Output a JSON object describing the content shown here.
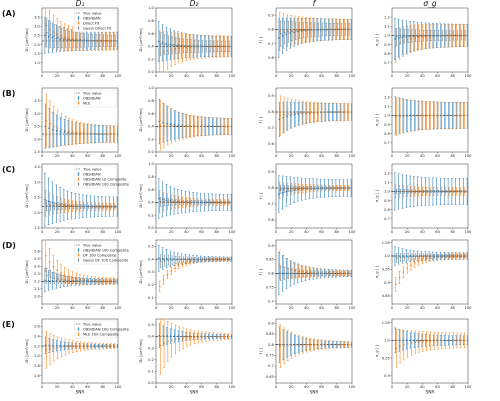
{
  "figure": {
    "column_titles": [
      "D₁",
      "D₂",
      "f",
      "σ_g"
    ],
    "row_labels": [
      "(A)",
      "(B)",
      "(C)",
      "(D)",
      "(E)"
    ],
    "xlabel": "SNR"
  },
  "chart_data": [
    {
      "id": "A-D1",
      "row": 0,
      "col": 0,
      "type": "scatter",
      "ylabel": "D₁ [µm²/ms]",
      "ylim": [
        0.5,
        4.0
      ],
      "yticks": [
        1.0,
        1.5,
        2.0,
        2.5,
        3.0,
        3.5
      ],
      "xlim": [
        0,
        100
      ],
      "xticks": [
        0,
        20,
        40,
        60,
        80,
        100
      ],
      "truth": 2.2,
      "legend": [
        "True value",
        "OBSIDIAN",
        "Direct Fit",
        "Gauss Direct Fit"
      ],
      "series": [
        {
          "name": "OBSIDIAN",
          "color": "#1f77b4",
          "start": 2.6,
          "err0": 1.1,
          "errInf": 0.45
        },
        {
          "name": "Direct Fit",
          "color": "#ff7f0e",
          "start": 3.3,
          "err0": 1.3,
          "errInf": 0.5
        },
        {
          "name": "Gauss Direct Fit",
          "color": "#7f7f7f",
          "start": 2.8,
          "err0": 0.9,
          "errInf": 0.3
        }
      ]
    },
    {
      "id": "A-D2",
      "row": 0,
      "col": 1,
      "type": "scatter",
      "ylabel": "D₂ [µm²/ms]",
      "ylim": [
        0.0,
        1.0
      ],
      "yticks": [
        0.0,
        0.2,
        0.4,
        0.6,
        0.8,
        1.0
      ],
      "xlim": [
        0,
        100
      ],
      "xticks": [
        0,
        20,
        40,
        60,
        80,
        100
      ],
      "truth": 0.4,
      "series": [
        {
          "name": "OBSIDIAN",
          "color": "#1f77b4",
          "start": 0.5,
          "err0": 0.35,
          "errInf": 0.15
        },
        {
          "name": "Direct Fit",
          "color": "#ff7f0e",
          "start": 0.25,
          "err0": 0.4,
          "errInf": 0.16
        },
        {
          "name": "Gauss Direct Fit",
          "color": "#7f7f7f",
          "start": 0.45,
          "err0": 0.2,
          "errInf": 0.08
        }
      ]
    },
    {
      "id": "A-f",
      "row": 0,
      "col": 2,
      "type": "scatter",
      "ylabel": "f [ ]",
      "ylim": [
        0.5,
        0.95
      ],
      "yticks": [
        0.6,
        0.7,
        0.8,
        0.9
      ],
      "xlim": [
        0,
        100
      ],
      "xticks": [
        0,
        20,
        40,
        60,
        80,
        100
      ],
      "truth": 0.8,
      "series": [
        {
          "name": "OBSIDIAN",
          "color": "#1f77b4",
          "start": 0.72,
          "err0": 0.15,
          "errInf": 0.07
        },
        {
          "name": "Direct Fit",
          "color": "#ff7f0e",
          "start": 0.78,
          "err0": 0.15,
          "errInf": 0.07
        },
        {
          "name": "Gauss Direct Fit",
          "color": "#7f7f7f",
          "start": 0.76,
          "err0": 0.1,
          "errInf": 0.04
        }
      ]
    },
    {
      "id": "A-sg",
      "row": 0,
      "col": 3,
      "type": "scatter",
      "ylabel": "σ_g [ ]",
      "ylim": [
        0.6,
        1.3
      ],
      "yticks": [
        0.7,
        0.8,
        0.9,
        1.0,
        1.1,
        1.2
      ],
      "xlim": [
        0,
        100
      ],
      "xticks": [
        0,
        20,
        40,
        60,
        80,
        100
      ],
      "truth": 1.0,
      "series": [
        {
          "name": "OBSIDIAN",
          "color": "#1f77b4",
          "start": 0.95,
          "err0": 0.25,
          "errInf": 0.12
        },
        {
          "name": "Direct Fit",
          "color": "#ff7f0e",
          "start": 0.85,
          "err0": 0.2,
          "errInf": 0.12
        },
        {
          "name": "Gauss Direct Fit",
          "color": "#7f7f7f",
          "start": 0.98,
          "err0": 0.1,
          "errInf": 0.05
        }
      ]
    },
    {
      "id": "B-D1",
      "row": 1,
      "col": 0,
      "type": "scatter",
      "ylabel": "D₁ [µm²/ms]",
      "ylim": [
        1.5,
        4.0
      ],
      "yticks": [
        1.5,
        2.0,
        2.5,
        3.0,
        3.5
      ],
      "xlim": [
        0,
        100
      ],
      "xticks": [
        0,
        20,
        40,
        60,
        80,
        100
      ],
      "truth": 2.2,
      "legend": [
        "True value",
        "OBSIDIAN",
        "MLE"
      ],
      "series": [
        {
          "name": "OBSIDIAN",
          "color": "#1f77b4",
          "start": 2.6,
          "err0": 1.0,
          "errInf": 0.3
        },
        {
          "name": "MLE",
          "color": "#ff7f0e",
          "start": 2.9,
          "err0": 1.2,
          "errInf": 0.3
        }
      ]
    },
    {
      "id": "B-D2",
      "row": 1,
      "col": 1,
      "type": "scatter",
      "ylabel": "D₂ [µm²/ms]",
      "ylim": [
        0.0,
        1.0
      ],
      "yticks": [
        0.0,
        0.2,
        0.4,
        0.6,
        0.8,
        1.0
      ],
      "xlim": [
        0,
        100
      ],
      "xticks": [
        0,
        20,
        40,
        60,
        80,
        100
      ],
      "truth": 0.4,
      "series": [
        {
          "name": "OBSIDIAN",
          "color": "#1f77b4",
          "start": 0.5,
          "err0": 0.4,
          "errInf": 0.12
        },
        {
          "name": "MLE",
          "color": "#ff7f0e",
          "start": 0.42,
          "err0": 0.45,
          "errInf": 0.12
        }
      ]
    },
    {
      "id": "B-f",
      "row": 1,
      "col": 2,
      "type": "scatter",
      "ylabel": "f [ ]",
      "ylim": [
        0.55,
        0.95
      ],
      "yticks": [
        0.6,
        0.7,
        0.8,
        0.9
      ],
      "xlim": [
        0,
        100
      ],
      "xticks": [
        0,
        20,
        40,
        60,
        80,
        100
      ],
      "truth": 0.8,
      "series": [
        {
          "name": "OBSIDIAN",
          "color": "#1f77b4",
          "start": 0.74,
          "err0": 0.12,
          "errInf": 0.05
        },
        {
          "name": "MLE",
          "color": "#ff7f0e",
          "start": 0.77,
          "err0": 0.14,
          "errInf": 0.05
        }
      ]
    },
    {
      "id": "B-sg",
      "row": 1,
      "col": 3,
      "type": "scatter",
      "ylabel": "σ_g [ ]",
      "ylim": [
        0.6,
        1.3
      ],
      "yticks": [
        0.7,
        0.8,
        0.9,
        1.0,
        1.1,
        1.2
      ],
      "xlim": [
        0,
        100
      ],
      "xticks": [
        0,
        20,
        40,
        60,
        80,
        100
      ],
      "truth": 1.0,
      "series": [
        {
          "name": "OBSIDIAN",
          "color": "#1f77b4",
          "start": 1.0,
          "err0": 0.22,
          "errInf": 0.14
        },
        {
          "name": "MLE",
          "color": "#ff7f0e",
          "start": 0.98,
          "err0": 0.22,
          "errInf": 0.14
        }
      ]
    },
    {
      "id": "C-D1",
      "row": 2,
      "col": 0,
      "type": "scatter",
      "ylabel": "D₁ [µm²/ms]",
      "ylim": [
        1.5,
        3.6
      ],
      "yticks": [
        1.5,
        2.0,
        2.5,
        3.0,
        3.5
      ],
      "xlim": [
        0,
        100
      ],
      "xticks": [
        0,
        20,
        40,
        60,
        80,
        100
      ],
      "truth": 2.2,
      "legend": [
        "True value",
        "OBSIDIAN",
        "OBSIDIAN 10 Composite",
        "OBSIDIAN 100 Composite"
      ],
      "series": [
        {
          "name": "OBSIDIAN",
          "color": "#1f77b4",
          "start": 2.5,
          "err0": 1.0,
          "errInf": 0.3
        },
        {
          "name": "OBSIDIAN 10 Composite",
          "color": "#ff7f0e",
          "start": 2.35,
          "err0": 0.5,
          "errInf": 0.1
        },
        {
          "name": "OBSIDIAN 100 Composite",
          "color": "#7f7f7f",
          "start": 2.25,
          "err0": 0.2,
          "errInf": 0.04
        }
      ]
    },
    {
      "id": "C-D2",
      "row": 2,
      "col": 1,
      "type": "scatter",
      "ylabel": "D₂ [µm²/ms]",
      "ylim": [
        0.0,
        1.0
      ],
      "yticks": [
        0.0,
        0.2,
        0.4,
        0.6,
        0.8,
        1.0
      ],
      "xlim": [
        0,
        100
      ],
      "xticks": [
        0,
        20,
        40,
        60,
        80,
        100
      ],
      "truth": 0.4,
      "series": [
        {
          "name": "OBSIDIAN",
          "color": "#1f77b4",
          "start": 0.48,
          "err0": 0.35,
          "errInf": 0.12
        },
        {
          "name": "OBSIDIAN 10 Composite",
          "color": "#ff7f0e",
          "start": 0.42,
          "err0": 0.2,
          "errInf": 0.04
        },
        {
          "name": "OBSIDIAN 100 Composite",
          "color": "#7f7f7f",
          "start": 0.41,
          "err0": 0.08,
          "errInf": 0.02
        }
      ]
    },
    {
      "id": "C-f",
      "row": 2,
      "col": 2,
      "type": "scatter",
      "ylabel": "f [ ]",
      "ylim": [
        0.55,
        0.95
      ],
      "yticks": [
        0.6,
        0.7,
        0.8,
        0.9
      ],
      "xlim": [
        0,
        100
      ],
      "xticks": [
        0,
        20,
        40,
        60,
        80,
        100
      ],
      "truth": 0.8,
      "series": [
        {
          "name": "OBSIDIAN",
          "color": "#1f77b4",
          "start": 0.75,
          "err0": 0.13,
          "errInf": 0.05
        },
        {
          "name": "OBSIDIAN 10 Composite",
          "color": "#ff7f0e",
          "start": 0.78,
          "err0": 0.06,
          "errInf": 0.015
        },
        {
          "name": "OBSIDIAN 100 Composite",
          "color": "#7f7f7f",
          "start": 0.79,
          "err0": 0.03,
          "errInf": 0.006
        }
      ]
    },
    {
      "id": "C-sg",
      "row": 2,
      "col": 3,
      "type": "scatter",
      "ylabel": "σ_g [ ]",
      "ylim": [
        0.6,
        1.3
      ],
      "yticks": [
        0.7,
        0.8,
        0.9,
        1.0,
        1.1,
        1.2
      ],
      "xlim": [
        0,
        100
      ],
      "xticks": [
        0,
        20,
        40,
        60,
        80,
        100
      ],
      "truth": 1.0,
      "series": [
        {
          "name": "OBSIDIAN",
          "color": "#1f77b4",
          "start": 1.0,
          "err0": 0.22,
          "errInf": 0.14
        },
        {
          "name": "OBSIDIAN 10 Composite",
          "color": "#ff7f0e",
          "start": 1.0,
          "err0": 0.08,
          "errInf": 0.04
        },
        {
          "name": "OBSIDIAN 100 Composite",
          "color": "#7f7f7f",
          "start": 1.0,
          "err0": 0.03,
          "errInf": 0.01
        }
      ]
    },
    {
      "id": "D-D1",
      "row": 3,
      "col": 0,
      "type": "scatter",
      "ylabel": "D₁ [µm²/ms]",
      "ylim": [
        1.9,
        2.75
      ],
      "yticks": [
        2.0,
        2.1,
        2.2,
        2.3,
        2.4,
        2.5,
        2.6
      ],
      "xlim": [
        0,
        100
      ],
      "xticks": [
        0,
        20,
        40,
        60,
        80,
        100
      ],
      "truth": 2.2,
      "legend": [
        "True value",
        "OBSIDIAN 100 Composite",
        "DF 100 Composite",
        "Gauss DF 100 Composite"
      ],
      "series": [
        {
          "name": "OBSIDIAN 100 Composite",
          "color": "#1f77b4",
          "start": 2.22,
          "err0": 0.18,
          "errInf": 0.03
        },
        {
          "name": "DF 100 Composite",
          "color": "#ff7f0e",
          "start": 2.65,
          "err0": 0.25,
          "errInf": 0.04
        },
        {
          "name": "Gauss DF 100 Composite",
          "color": "#7f7f7f",
          "start": 2.3,
          "err0": 0.12,
          "errInf": 0.02
        }
      ]
    },
    {
      "id": "D-D2",
      "row": 3,
      "col": 1,
      "type": "scatter",
      "ylabel": "D₂ [µm²/ms]",
      "ylim": [
        0.05,
        0.55
      ],
      "yticks": [
        0.1,
        0.2,
        0.3,
        0.4,
        0.5
      ],
      "xlim": [
        0,
        100
      ],
      "xticks": [
        0,
        20,
        40,
        60,
        80,
        100
      ],
      "truth": 0.4,
      "series": [
        {
          "name": "OBSIDIAN 100 Composite",
          "color": "#1f77b4",
          "start": 0.41,
          "err0": 0.12,
          "errInf": 0.015
        },
        {
          "name": "DF 100 Composite",
          "color": "#ff7f0e",
          "start": 0.12,
          "err0": 0.05,
          "errInf": 0.01
        },
        {
          "name": "Gauss DF 100 Composite",
          "color": "#7f7f7f",
          "start": 0.38,
          "err0": 0.06,
          "errInf": 0.01
        }
      ]
    },
    {
      "id": "D-f",
      "row": 3,
      "col": 2,
      "type": "scatter",
      "ylabel": "f [ ]",
      "ylim": [
        0.69,
        0.92
      ],
      "yticks": [
        0.7,
        0.75,
        0.8,
        0.85,
        0.9
      ],
      "xlim": [
        0,
        100
      ],
      "xticks": [
        0,
        20,
        40,
        60,
        80,
        100
      ],
      "truth": 0.8,
      "series": [
        {
          "name": "OBSIDIAN 100 Composite",
          "color": "#1f77b4",
          "start": 0.8,
          "err0": 0.09,
          "errInf": 0.01
        },
        {
          "name": "DF 100 Composite",
          "color": "#ff7f0e",
          "start": 0.84,
          "err0": 0.06,
          "errInf": 0.008
        },
        {
          "name": "Gauss DF 100 Composite",
          "color": "#7f7f7f",
          "start": 0.8,
          "err0": 0.03,
          "errInf": 0.006
        }
      ]
    },
    {
      "id": "D-sg",
      "row": 3,
      "col": 3,
      "type": "scatter",
      "ylabel": "σ_g [ ]",
      "ylim": [
        0.82,
        1.06
      ],
      "yticks": [
        0.85,
        0.9,
        0.95,
        1.0,
        1.05
      ],
      "xlim": [
        0,
        100
      ],
      "xticks": [
        0,
        20,
        40,
        60,
        80,
        100
      ],
      "truth": 1.0,
      "series": [
        {
          "name": "OBSIDIAN 100 Composite",
          "color": "#1f77b4",
          "start": 1.0,
          "err0": 0.04,
          "errInf": 0.012
        },
        {
          "name": "DF 100 Composite",
          "color": "#ff7f0e",
          "start": 0.86,
          "err0": 0.03,
          "errInf": 0.01
        },
        {
          "name": "Gauss DF 100 Composite",
          "color": "#7f7f7f",
          "start": 0.99,
          "err0": 0.02,
          "errInf": 0.006
        }
      ]
    },
    {
      "id": "E-D1",
      "row": 4,
      "col": 0,
      "type": "scatter",
      "ylabel": "D₁ [µm²/ms]",
      "ylim": [
        1.45,
        2.75
      ],
      "yticks": [
        1.6,
        1.8,
        2.0,
        2.2,
        2.4,
        2.6
      ],
      "xlim": [
        0,
        100
      ],
      "xticks": [
        0,
        20,
        40,
        60,
        80,
        100
      ],
      "truth": 2.2,
      "legend": [
        "True value",
        "OBSIDIAN 100 Composite",
        "MLE 100 Composite"
      ],
      "series": [
        {
          "name": "OBSIDIAN 100 Composite",
          "color": "#1f77b4",
          "start": 2.22,
          "err0": 0.2,
          "errInf": 0.03
        },
        {
          "name": "MLE 100 Composite",
          "color": "#ff7f0e",
          "start": 2.1,
          "err0": 0.45,
          "errInf": 0.04
        }
      ]
    },
    {
      "id": "E-D2",
      "row": 4,
      "col": 1,
      "type": "scatter",
      "ylabel": "D₂ [µm²/ms]",
      "ylim": [
        0.0,
        0.55
      ],
      "yticks": [
        0.0,
        0.1,
        0.2,
        0.3,
        0.4,
        0.5
      ],
      "xlim": [
        0,
        100
      ],
      "xticks": [
        0,
        20,
        40,
        60,
        80,
        100
      ],
      "truth": 0.4,
      "series": [
        {
          "name": "OBSIDIAN 100 Composite",
          "color": "#1f77b4",
          "start": 0.41,
          "err0": 0.12,
          "errInf": 0.015
        },
        {
          "name": "MLE 100 Composite",
          "color": "#ff7f0e",
          "start": 0.3,
          "err0": 0.3,
          "errInf": 0.02
        }
      ]
    },
    {
      "id": "E-f",
      "row": 4,
      "col": 2,
      "type": "scatter",
      "ylabel": "f [ ]",
      "ylim": [
        0.62,
        0.92
      ],
      "yticks": [
        0.65,
        0.7,
        0.75,
        0.8,
        0.85,
        0.9
      ],
      "xlim": [
        0,
        100
      ],
      "xticks": [
        0,
        20,
        40,
        60,
        80,
        100
      ],
      "truth": 0.8,
      "series": [
        {
          "name": "OBSIDIAN 100 Composite",
          "color": "#1f77b4",
          "start": 0.8,
          "err0": 0.1,
          "errInf": 0.01
        },
        {
          "name": "MLE 100 Composite",
          "color": "#ff7f0e",
          "start": 0.79,
          "err0": 0.12,
          "errInf": 0.012
        }
      ]
    },
    {
      "id": "E-sg",
      "row": 4,
      "col": 3,
      "type": "scatter",
      "ylabel": "σ_g [ ]",
      "ylim": [
        0.88,
        1.06
      ],
      "yticks": [
        0.9,
        0.95,
        1.0,
        1.05
      ],
      "xlim": [
        0,
        100
      ],
      "xticks": [
        0,
        20,
        40,
        60,
        80,
        100
      ],
      "truth": 1.0,
      "series": [
        {
          "name": "OBSIDIAN 100 Composite",
          "color": "#1f77b4",
          "start": 1.0,
          "err0": 0.04,
          "errInf": 0.012
        },
        {
          "name": "MLE 100 Composite",
          "color": "#ff7f0e",
          "start": 0.97,
          "err0": 0.06,
          "errInf": 0.02
        }
      ]
    }
  ]
}
